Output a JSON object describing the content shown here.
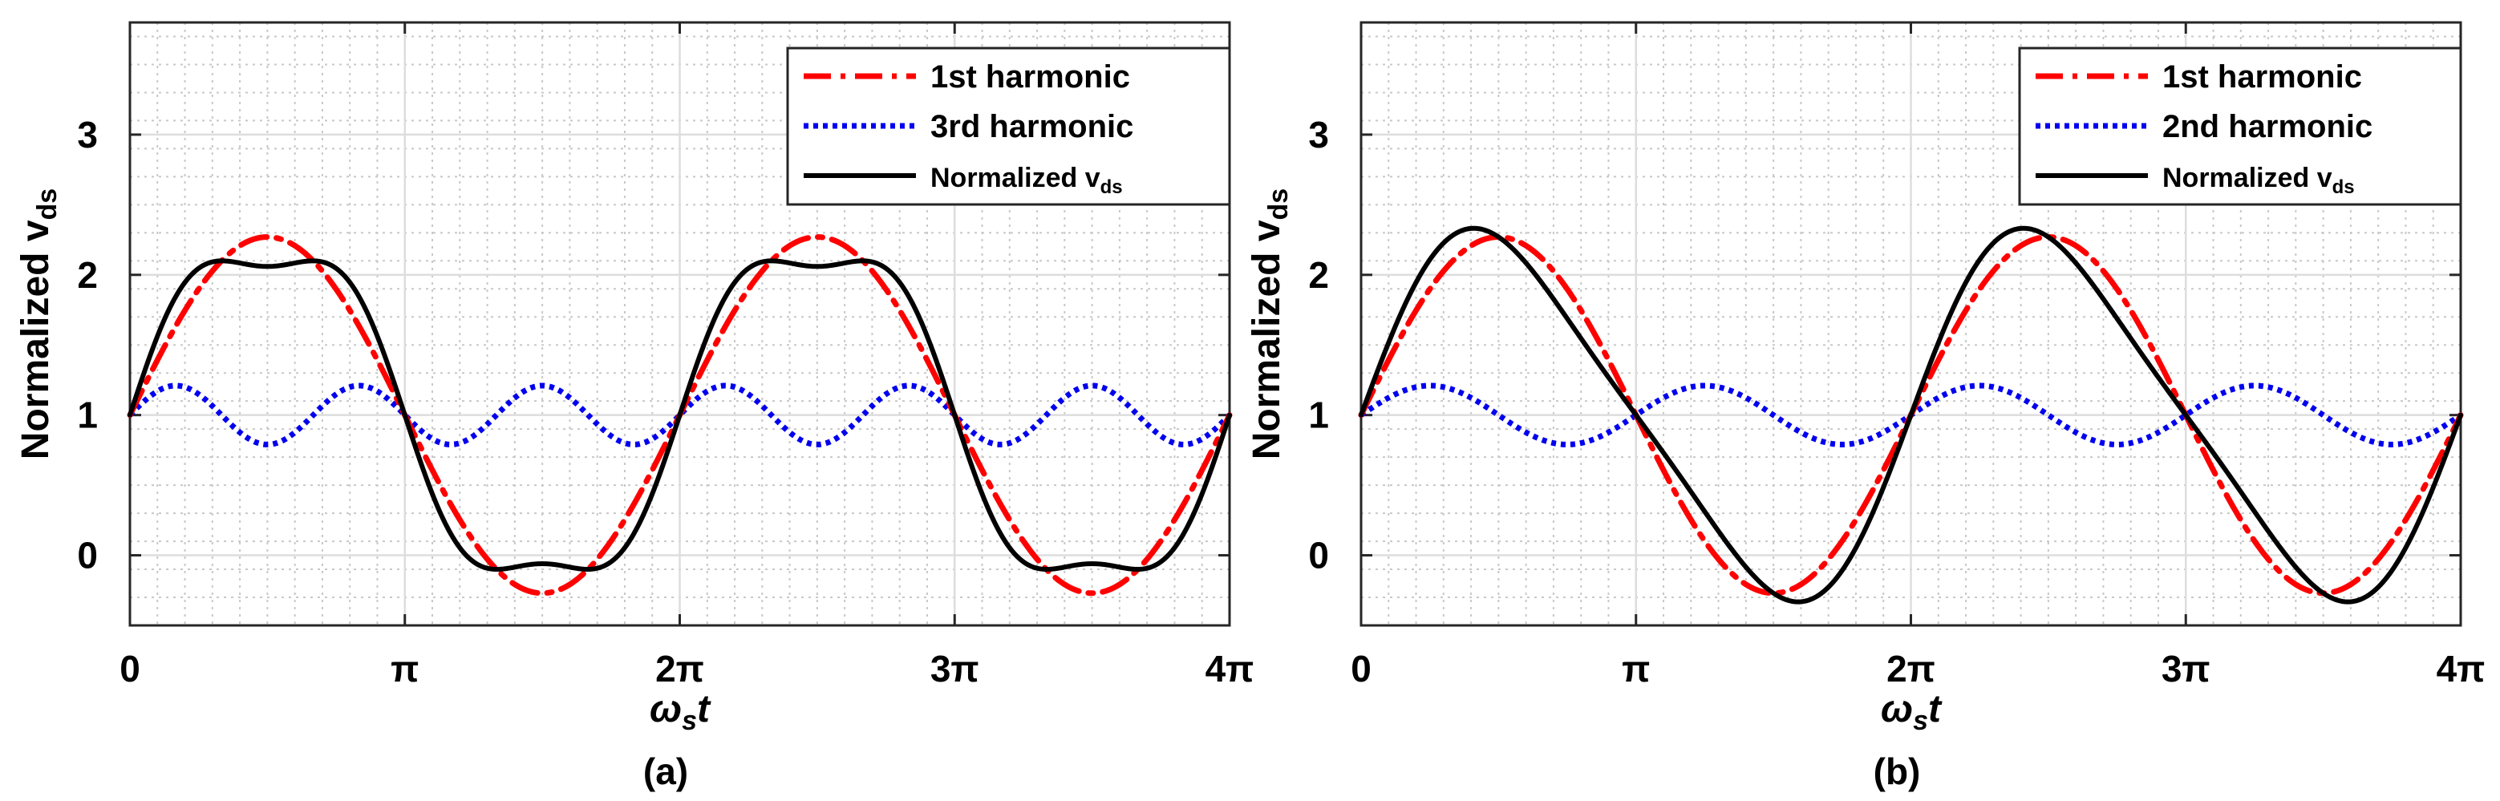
{
  "chart_data": [
    {
      "type": "line",
      "panel_label": "(a)",
      "xlabel": "ωst",
      "ylabel": "Normalized vds",
      "x_range": [
        0,
        12.566370614359172
      ],
      "xticks": [
        0,
        3.141592653589793,
        6.283185307179586,
        9.42477796076938,
        12.566370614359172
      ],
      "xtick_labels": [
        "0",
        "π",
        "2π",
        "3π",
        "4π"
      ],
      "ylim": [
        -0.5,
        3.8
      ],
      "yticks": [
        0,
        1,
        2,
        3
      ],
      "ytick_labels": [
        "0",
        "1",
        "2",
        "3"
      ],
      "grid": true,
      "minor_grid": true,
      "legend_position": "top-right",
      "series": [
        {
          "name": "1st harmonic",
          "role": "h1",
          "style": "dashdot",
          "color": "#ff0000",
          "formula": "1 + 1.27·sin(ωst)",
          "y_min": -0.27,
          "y_max": 2.27
        },
        {
          "name": "3rd harmonic",
          "role": "h2",
          "style": "dotted",
          "color": "#0000ee",
          "formula": "1 + 0.21·sin(3ωst)",
          "y_min": 0.79,
          "y_max": 1.21
        },
        {
          "name": "Normalized vds",
          "role": "total",
          "style": "solid",
          "color": "#000000",
          "formula": "1 + 1.27·sin(ωst) + 0.21·sin(3ωst)",
          "y_min": -0.11,
          "y_max": 2.11
        }
      ]
    },
    {
      "type": "line",
      "panel_label": "(b)",
      "xlabel": "ωst",
      "ylabel": "Normalized vds",
      "x_range": [
        0,
        12.566370614359172
      ],
      "xticks": [
        0,
        3.141592653589793,
        6.283185307179586,
        9.42477796076938,
        12.566370614359172
      ],
      "xtick_labels": [
        "0",
        "π",
        "2π",
        "3π",
        "4π"
      ],
      "ylim": [
        -0.5,
        3.8
      ],
      "yticks": [
        0,
        1,
        2,
        3
      ],
      "ytick_labels": [
        "0",
        "1",
        "2",
        "3"
      ],
      "grid": true,
      "minor_grid": true,
      "legend_position": "top-right",
      "series": [
        {
          "name": "1st harmonic",
          "role": "h1",
          "style": "dashdot",
          "color": "#ff0000",
          "formula": "1 + 1.27·sin(ωst)",
          "y_min": -0.27,
          "y_max": 2.27
        },
        {
          "name": "2nd harmonic",
          "role": "h2",
          "style": "dotted",
          "color": "#0000ee",
          "formula": "1 + 0.21·sin(2ωst)",
          "y_min": 0.79,
          "y_max": 1.21
        },
        {
          "name": "Normalized vds",
          "role": "total",
          "style": "solid",
          "color": "#000000",
          "formula": "1 + 1.27·sin(ωst) + 0.21·sin(2ωst)",
          "y_min": -0.32,
          "y_max": 2.32
        }
      ]
    }
  ]
}
